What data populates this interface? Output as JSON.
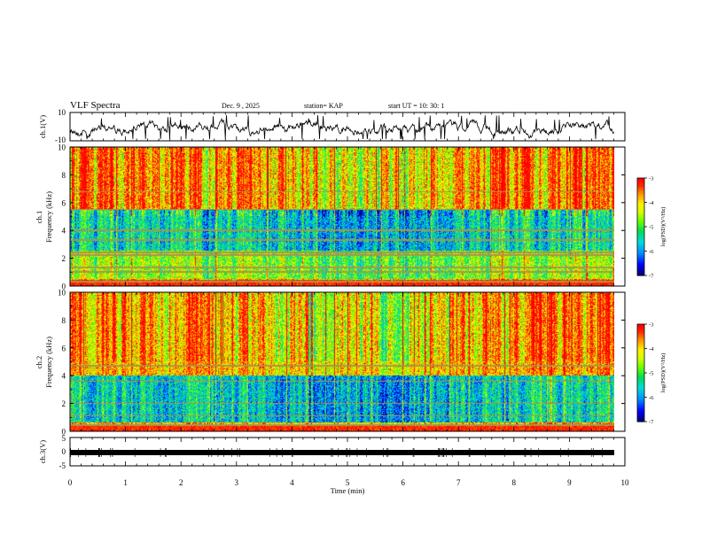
{
  "header": {
    "title": "VLF Spectra",
    "date": "Dec. 9 , 2025",
    "station": "station= KAP",
    "start": "start  UT =   10: 30: 1"
  },
  "colors": {
    "spectrogram_scale": [
      "#000080",
      "#0000ff",
      "#00a0ff",
      "#00e0e0",
      "#00e060",
      "#60ff00",
      "#c0ff00",
      "#ffff00",
      "#ffb000",
      "#ff3000",
      "#ff0000",
      "#ffffff"
    ]
  },
  "chart_data": [
    {
      "type": "line",
      "id": "ch1-waveform",
      "ylabel": "ch.1(V)",
      "ylim": [
        -10,
        10
      ],
      "y_ticks": [
        "10",
        "-10"
      ],
      "x_range_min": [
        0,
        10
      ],
      "series_description": "broadband waveform amplitude trace"
    },
    {
      "type": "heatmap",
      "id": "ch1-spectrogram",
      "ylabel": "ch.1 Frequency (kHz)",
      "ylim_khz": [
        0,
        10
      ],
      "y_ticks": [
        "0",
        "2",
        "4",
        "6",
        "8",
        "10"
      ],
      "x_range_min": [
        0,
        9.8
      ],
      "colorbar": {
        "label": "log(PSD)(V²/Hz)",
        "range": [
          -7,
          -3
        ],
        "ticks": [
          "-3",
          "-4",
          "-5",
          "-6",
          "-7"
        ]
      },
      "horizontal_lines_khz": [
        0.3,
        1.0,
        1.3,
        2.2,
        2.4,
        3.3,
        4.0,
        5.5,
        6.8
      ],
      "bands": [
        {
          "from_khz": 0.0,
          "to_khz": 0.5,
          "level": "high"
        },
        {
          "from_khz": 0.5,
          "to_khz": 2.5,
          "level": "medium"
        },
        {
          "from_khz": 2.5,
          "to_khz": 5.5,
          "level": "low"
        },
        {
          "from_khz": 5.5,
          "to_khz": 10.0,
          "level": "high"
        }
      ]
    },
    {
      "type": "heatmap",
      "id": "ch2-spectrogram",
      "ylabel": "ch.2 Frequency (kHz)",
      "ylim_khz": [
        0,
        10
      ],
      "y_ticks": [
        "0",
        "2",
        "4",
        "6",
        "8",
        "10"
      ],
      "x_range_min": [
        0,
        9.8
      ],
      "colorbar": {
        "label": "log(PSD)(V²/Hz)",
        "range": [
          -7,
          -3
        ],
        "ticks": [
          "-3",
          "-4",
          "-5",
          "-6",
          "-7"
        ]
      },
      "horizontal_lines_khz": [
        0.4,
        1.1,
        2.0,
        3.6,
        4.7
      ],
      "bands": [
        {
          "from_khz": 0.0,
          "to_khz": 0.6,
          "level": "high"
        },
        {
          "from_khz": 0.6,
          "to_khz": 1.8,
          "level": "low"
        },
        {
          "from_khz": 1.8,
          "to_khz": 4.0,
          "level": "low"
        },
        {
          "from_khz": 4.0,
          "to_khz": 10.0,
          "level": "high"
        }
      ]
    },
    {
      "type": "line",
      "id": "ch3-waveform",
      "ylabel": "ch.3(V)",
      "ylim": [
        -5,
        5
      ],
      "y_ticks": [
        "5",
        "0",
        "-5"
      ],
      "x_range_min": [
        0,
        9.8
      ],
      "series_description": "nearly constant level near -1 V"
    }
  ],
  "x_axis": {
    "label": "Time (min)",
    "ticks": [
      "0",
      "1",
      "2",
      "3",
      "4",
      "5",
      "6",
      "7",
      "8",
      "9",
      "10"
    ],
    "range": [
      0,
      10
    ]
  }
}
